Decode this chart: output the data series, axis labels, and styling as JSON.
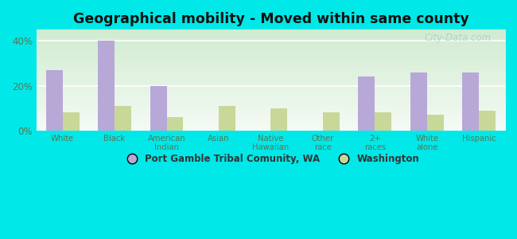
{
  "title": "Geographical mobility - Moved within same county",
  "categories": [
    "White",
    "Black",
    "American\nIndian",
    "Asian",
    "Native\nHawaiian",
    "Other\nrace",
    "2+\nraces",
    "White\nalone",
    "Hispanic"
  ],
  "port_gamble_values": [
    27,
    40,
    20,
    0,
    0,
    0,
    24,
    26,
    26
  ],
  "washington_values": [
    8,
    11,
    6,
    11,
    10,
    8,
    8,
    7,
    9
  ],
  "port_gamble_color": "#b8a8d8",
  "washington_color": "#c8d898",
  "background_color": "#00e8e8",
  "plot_bg_top": "#d0ecd0",
  "plot_bg_bottom": "#f5faf5",
  "ylim": [
    0,
    45
  ],
  "yticks": [
    0,
    20,
    40
  ],
  "ytick_labels": [
    "0%",
    "20%",
    "40%"
  ],
  "legend_label_1": "Port Gamble Tribal Comunity, WA",
  "legend_label_2": "Washington",
  "watermark": "City-Data.com",
  "bar_width": 0.32
}
